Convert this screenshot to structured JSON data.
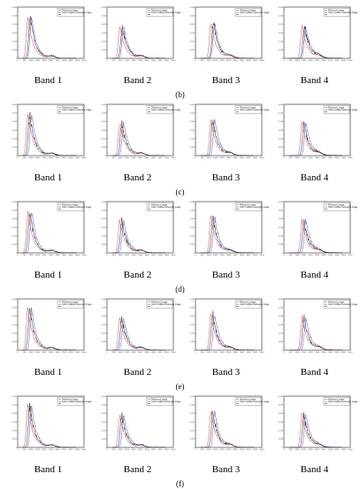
{
  "row_labels": [
    "(b)",
    "(c)",
    "(d)",
    "(e)",
    "(f)"
  ],
  "band_labels": [
    "Band 1",
    "Band 2",
    "Band 3",
    "Band 4"
  ],
  "colors": {
    "reference": "#d8343c",
    "color_modified": "#3c46b4",
    "method": "#111111"
  },
  "chart_data": {
    "type": "line",
    "layout": "grid 5 rows x 4 columns of histogram panels",
    "panel_title": "",
    "x_ticks": [
      "0",
      "500",
      "1000",
      "1500",
      "2000",
      "2500",
      "3000",
      "3500",
      "4000",
      "4500",
      "5000"
    ],
    "y_ticks": [
      "0",
      "0.005",
      "0.010",
      "0.015",
      "0.020",
      "0.025",
      "0.030"
    ],
    "xlim": [
      0,
      5000
    ],
    "ylim": [
      0,
      0.03
    ],
    "grid": false,
    "legend_position": "top-right",
    "legend_series": [
      "Reference image",
      "Color modified reference image",
      ""
    ],
    "peak_x_by_band": [
      900,
      1100,
      1300,
      1500
    ],
    "peak_y_by_band": [
      0.024,
      0.019,
      0.021,
      0.019
    ]
  }
}
